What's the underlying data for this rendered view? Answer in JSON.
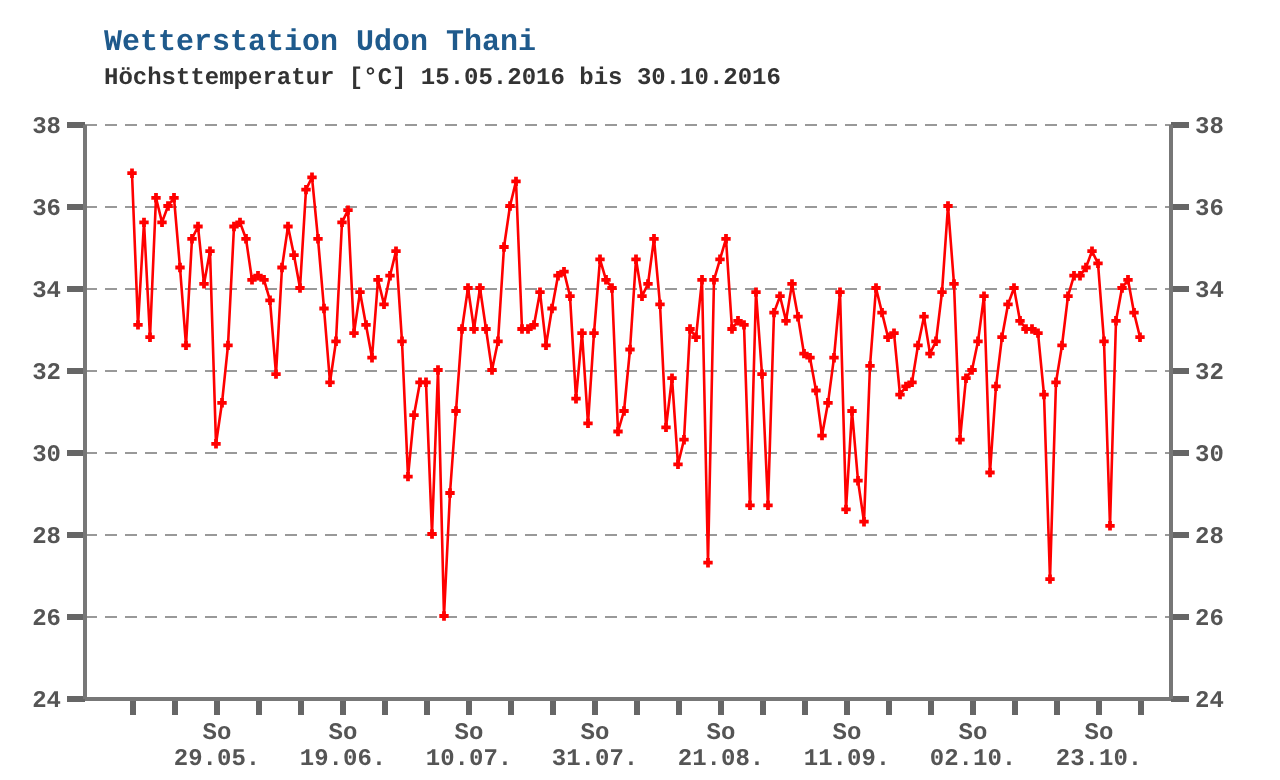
{
  "chart_data": {
    "type": "line",
    "title": "Wetterstation Udon Thani",
    "subtitle": "Höchsttemperatur [°C] 15.05.2016 bis 30.10.2016",
    "x": [
      "2016-05-15",
      "2016-05-16",
      "2016-05-17",
      "2016-05-18",
      "2016-05-19",
      "2016-05-20",
      "2016-05-21",
      "2016-05-22",
      "2016-05-23",
      "2016-05-24",
      "2016-05-25",
      "2016-05-26",
      "2016-05-27",
      "2016-05-28",
      "2016-05-29",
      "2016-05-30",
      "2016-05-31",
      "2016-06-01",
      "2016-06-02",
      "2016-06-03",
      "2016-06-04",
      "2016-06-05",
      "2016-06-06",
      "2016-06-07",
      "2016-06-08",
      "2016-06-09",
      "2016-06-10",
      "2016-06-11",
      "2016-06-12",
      "2016-06-13",
      "2016-06-14",
      "2016-06-15",
      "2016-06-16",
      "2016-06-17",
      "2016-06-18",
      "2016-06-19",
      "2016-06-20",
      "2016-06-21",
      "2016-06-22",
      "2016-06-23",
      "2016-06-24",
      "2016-06-25",
      "2016-06-26",
      "2016-06-27",
      "2016-06-28",
      "2016-06-29",
      "2016-06-30",
      "2016-07-01",
      "2016-07-02",
      "2016-07-03",
      "2016-07-04",
      "2016-07-05",
      "2016-07-06",
      "2016-07-07",
      "2016-07-08",
      "2016-07-09",
      "2016-07-10",
      "2016-07-11",
      "2016-07-12",
      "2016-07-13",
      "2016-07-14",
      "2016-07-15",
      "2016-07-16",
      "2016-07-17",
      "2016-07-18",
      "2016-07-19",
      "2016-07-20",
      "2016-07-21",
      "2016-07-22",
      "2016-07-23",
      "2016-07-24",
      "2016-07-25",
      "2016-07-26",
      "2016-07-27",
      "2016-07-28",
      "2016-07-29",
      "2016-07-30",
      "2016-07-31",
      "2016-08-01",
      "2016-08-02",
      "2016-08-03",
      "2016-08-04",
      "2016-08-05",
      "2016-08-06",
      "2016-08-07",
      "2016-08-08",
      "2016-08-09",
      "2016-08-10",
      "2016-08-11",
      "2016-08-12",
      "2016-08-13",
      "2016-08-14",
      "2016-08-15",
      "2016-08-16",
      "2016-08-17",
      "2016-08-18",
      "2016-08-19",
      "2016-08-20",
      "2016-08-21",
      "2016-08-22",
      "2016-08-23",
      "2016-08-24",
      "2016-08-25",
      "2016-08-26",
      "2016-08-27",
      "2016-08-28",
      "2016-08-29",
      "2016-08-30",
      "2016-08-31",
      "2016-09-01",
      "2016-09-02",
      "2016-09-03",
      "2016-09-04",
      "2016-09-05",
      "2016-09-06",
      "2016-09-07",
      "2016-09-08",
      "2016-09-09",
      "2016-09-10",
      "2016-09-11",
      "2016-09-12",
      "2016-09-13",
      "2016-09-14",
      "2016-09-15",
      "2016-09-16",
      "2016-09-17",
      "2016-09-18",
      "2016-09-19",
      "2016-09-20",
      "2016-09-21",
      "2016-09-22",
      "2016-09-23",
      "2016-09-24",
      "2016-09-25",
      "2016-09-26",
      "2016-09-27",
      "2016-09-28",
      "2016-09-29",
      "2016-09-30",
      "2016-10-01",
      "2016-10-02",
      "2016-10-03",
      "2016-10-04",
      "2016-10-05",
      "2016-10-06",
      "2016-10-07",
      "2016-10-08",
      "2016-10-09",
      "2016-10-10",
      "2016-10-11",
      "2016-10-12",
      "2016-10-13",
      "2016-10-14",
      "2016-10-15",
      "2016-10-16",
      "2016-10-17",
      "2016-10-18",
      "2016-10-19",
      "2016-10-20",
      "2016-10-21",
      "2016-10-22",
      "2016-10-23",
      "2016-10-24",
      "2016-10-25",
      "2016-10-26",
      "2016-10-27",
      "2016-10-28",
      "2016-10-29",
      "2016-10-30"
    ],
    "series": [
      {
        "color": "#ff0000",
        "values": [
          36.8,
          33.1,
          35.6,
          32.8,
          36.2,
          35.6,
          36.0,
          36.2,
          34.5,
          32.6,
          35.2,
          35.5,
          34.1,
          34.9,
          30.2,
          31.2,
          32.6,
          35.5,
          35.6,
          35.2,
          34.2,
          34.3,
          34.2,
          33.7,
          31.9,
          34.5,
          35.5,
          34.8,
          34.0,
          36.4,
          36.7,
          35.2,
          33.5,
          31.7,
          32.7,
          35.6,
          35.9,
          32.9,
          33.9,
          33.1,
          32.3,
          34.2,
          33.6,
          34.3,
          34.9,
          32.7,
          29.4,
          30.9,
          31.7,
          31.7,
          28.0,
          32.0,
          26.0,
          29.0,
          31.0,
          33.0,
          34.0,
          33.0,
          34.0,
          33.0,
          32.0,
          32.7,
          35.0,
          36.0,
          36.6,
          33.0,
          33.0,
          33.1,
          33.9,
          32.6,
          33.5,
          34.3,
          34.4,
          33.8,
          31.3,
          32.9,
          30.7,
          32.9,
          34.7,
          34.2,
          34.0,
          30.5,
          31.0,
          32.5,
          34.7,
          33.8,
          34.1,
          35.2,
          33.6,
          30.6,
          31.8,
          29.7,
          30.3,
          33.0,
          32.8,
          34.2,
          27.3,
          34.2,
          34.7,
          35.2,
          33.0,
          33.2,
          33.1,
          28.7,
          33.9,
          31.9,
          28.7,
          33.4,
          33.8,
          33.2,
          34.1,
          33.3,
          32.4,
          32.3,
          31.5,
          30.4,
          31.2,
          32.3,
          33.9,
          28.6,
          31.0,
          29.3,
          28.3,
          32.1,
          34.0,
          33.4,
          32.8,
          32.9,
          31.4,
          31.6,
          31.7,
          32.6,
          33.3,
          32.4,
          32.7,
          33.9,
          36.0,
          34.1,
          30.3,
          31.8,
          32.0,
          32.7,
          33.8,
          29.5,
          31.6,
          32.8,
          33.6,
          34.0,
          33.2,
          33.0,
          33.0,
          32.9,
          31.4,
          26.9,
          31.7,
          32.6,
          33.8,
          34.3,
          34.3,
          34.5,
          34.9,
          34.6,
          32.7,
          28.2,
          33.2,
          34.0,
          34.2,
          33.4,
          32.8
        ]
      }
    ],
    "xlim": [
      "2016-05-07",
      "2016-11-04"
    ],
    "xticks": [
      {
        "value": "2016-05-15",
        "label": null
      },
      {
        "value": "2016-05-22",
        "label": null
      },
      {
        "value": "2016-05-29",
        "label": "So 29.05."
      },
      {
        "value": "2016-06-05",
        "label": null
      },
      {
        "value": "2016-06-12",
        "label": null
      },
      {
        "value": "2016-06-19",
        "label": "So 19.06."
      },
      {
        "value": "2016-06-26",
        "label": null
      },
      {
        "value": "2016-07-03",
        "label": null
      },
      {
        "value": "2016-07-10",
        "label": "So 10.07."
      },
      {
        "value": "2016-07-17",
        "label": null
      },
      {
        "value": "2016-07-24",
        "label": null
      },
      {
        "value": "2016-07-31",
        "label": "So 31.07."
      },
      {
        "value": "2016-08-07",
        "label": null
      },
      {
        "value": "2016-08-14",
        "label": null
      },
      {
        "value": "2016-08-21",
        "label": "So 21.08."
      },
      {
        "value": "2016-08-28",
        "label": null
      },
      {
        "value": "2016-09-04",
        "label": null
      },
      {
        "value": "2016-09-11",
        "label": "So 11.09."
      },
      {
        "value": "2016-09-18",
        "label": null
      },
      {
        "value": "2016-09-25",
        "label": null
      },
      {
        "value": "2016-10-02",
        "label": "So 02.10."
      },
      {
        "value": "2016-10-09",
        "label": null
      },
      {
        "value": "2016-10-16",
        "label": null
      },
      {
        "value": "2016-10-23",
        "label": "So 23.10."
      },
      {
        "value": "2016-10-30",
        "label": null
      }
    ],
    "ylim": [
      24,
      38
    ],
    "yticks": [
      24,
      26,
      28,
      30,
      32,
      34,
      36,
      38
    ],
    "y2lim": [
      24,
      38
    ],
    "y2ticks": [
      24,
      26,
      28,
      30,
      32,
      34,
      36,
      38
    ],
    "grid": "y",
    "marker": "cross",
    "line_style": "solid"
  }
}
